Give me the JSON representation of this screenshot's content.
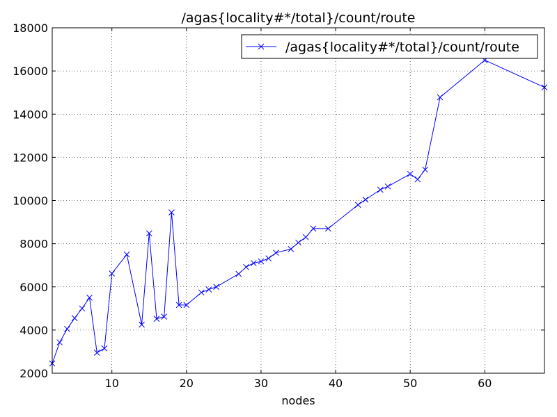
{
  "chart_data": {
    "type": "line",
    "title": "/agas{locality#*/total}/count/route",
    "xlabel": "nodes",
    "ylabel": "",
    "xlim": [
      2,
      68
    ],
    "ylim": [
      2000,
      18000
    ],
    "xticks": [
      10,
      20,
      30,
      40,
      50,
      60
    ],
    "yticks": [
      2000,
      4000,
      6000,
      8000,
      10000,
      12000,
      14000,
      16000,
      18000
    ],
    "grid": true,
    "legend_position": "top-right",
    "series": [
      {
        "name": "/agas{locality#*/total}/count/route",
        "color": "#0000ff",
        "marker": "x",
        "x": [
          2,
          3,
          4,
          5,
          6,
          7,
          8,
          9,
          10,
          12,
          14,
          15,
          16,
          17,
          18,
          19,
          20,
          22,
          23,
          24,
          27,
          28,
          29,
          30,
          31,
          32,
          34,
          35,
          36,
          37,
          39,
          43,
          44,
          46,
          47,
          50,
          51,
          52,
          54,
          60,
          68
        ],
        "y": [
          2450,
          3430,
          4050,
          4550,
          5000,
          5500,
          2950,
          3150,
          6620,
          7500,
          4250,
          8480,
          4520,
          4620,
          9450,
          5160,
          5160,
          5740,
          5880,
          6000,
          6600,
          6920,
          7100,
          7180,
          7320,
          7580,
          7750,
          8050,
          8300,
          8700,
          8700,
          9800,
          10040,
          10500,
          10650,
          11230,
          10980,
          11430,
          14780,
          16500,
          15240
        ]
      }
    ]
  }
}
